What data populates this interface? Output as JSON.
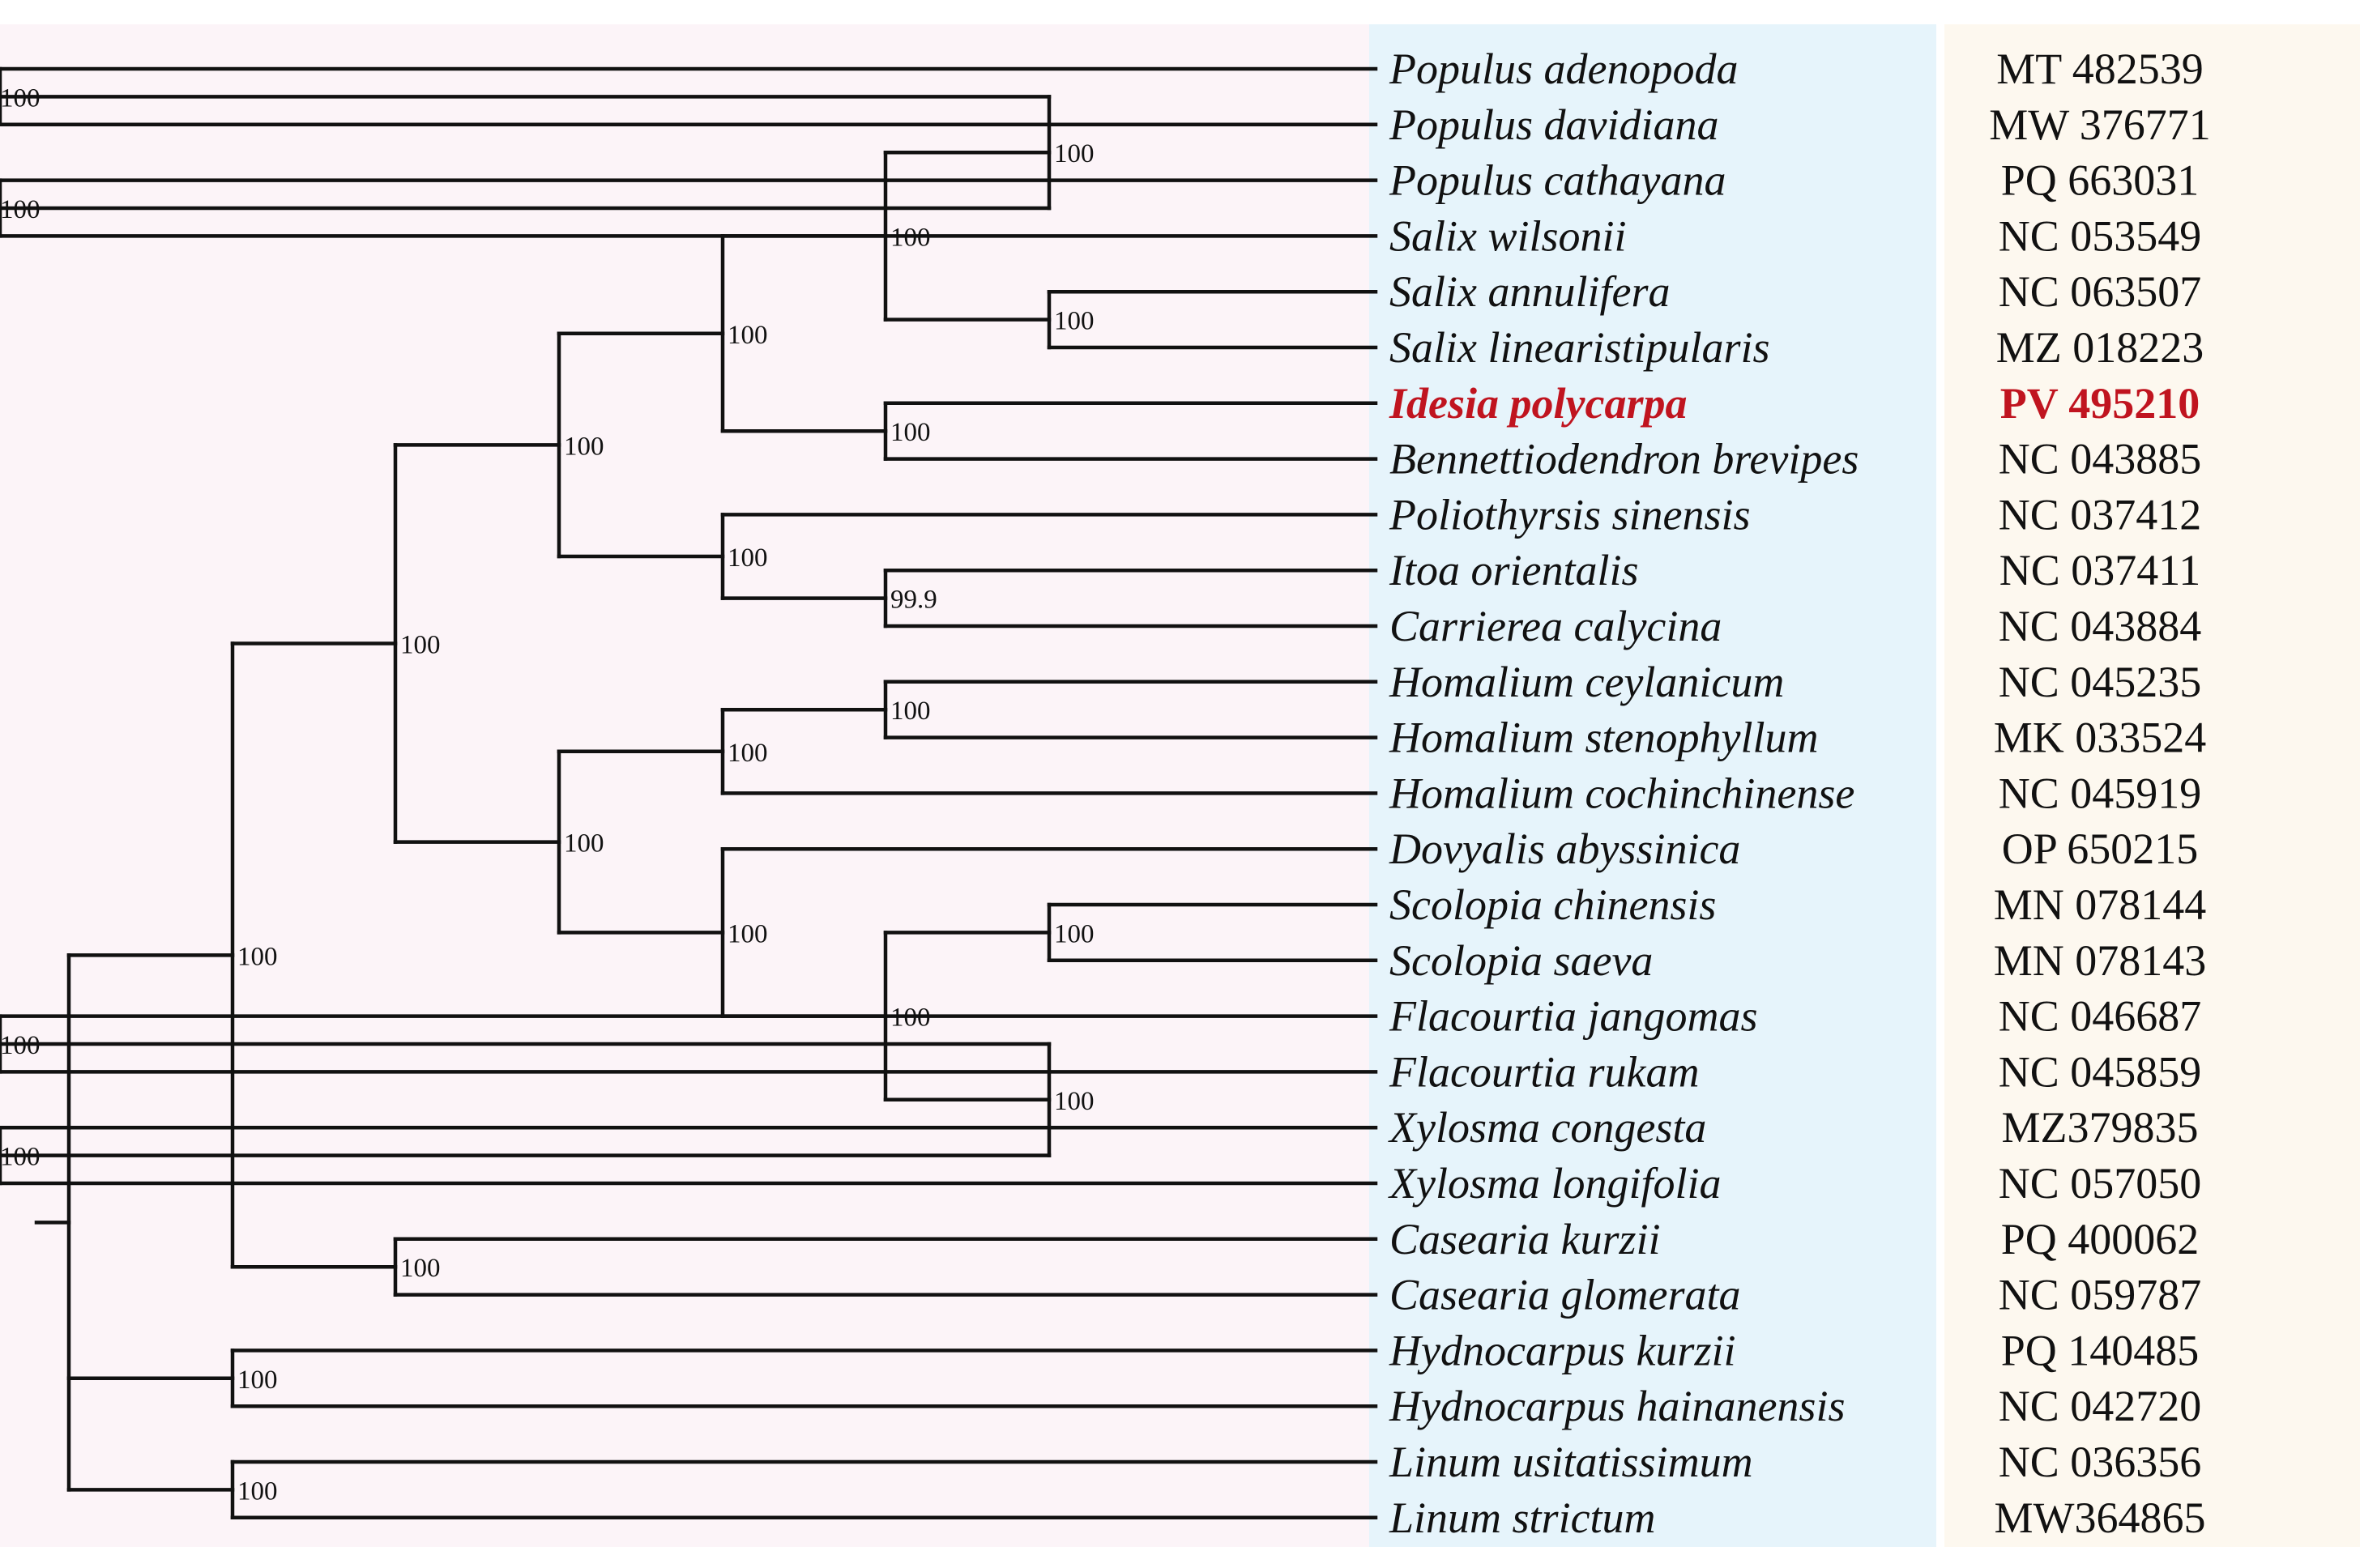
{
  "title": "",
  "colors": {
    "tree_panel": "#fcf4f8",
    "taxa_panel": "#e6f4fb",
    "accession_panel": "#fdf8ef",
    "branch": "#111111",
    "highlight": "#c0141f"
  },
  "highlight_taxon": "Idesia polycarpa",
  "taxa": [
    {
      "name": "Populus adenopoda",
      "accession": "MT 482539"
    },
    {
      "name": "Populus davidiana",
      "accession": "MW 376771"
    },
    {
      "name": "Populus cathayana",
      "accession": "PQ 663031"
    },
    {
      "name": "Salix wilsonii",
      "accession": "NC 053549"
    },
    {
      "name": "Salix annulifera",
      "accession": "NC 063507"
    },
    {
      "name": "Salix linearistipularis",
      "accession": "MZ 018223"
    },
    {
      "name": "Idesia polycarpa",
      "accession": "PV 495210"
    },
    {
      "name": "Bennettiodendron brevipes",
      "accession": "NC 043885"
    },
    {
      "name": "Poliothyrsis sinensis",
      "accession": "NC 037412"
    },
    {
      "name": "Itoa orientalis",
      "accession": "NC 037411"
    },
    {
      "name": "Carrierea calycina",
      "accession": "NC 043884"
    },
    {
      "name": "Homalium ceylanicum",
      "accession": "NC 045235"
    },
    {
      "name": "Homalium stenophyllum",
      "accession": "MK 033524"
    },
    {
      "name": "Homalium cochinchinense",
      "accession": "NC 045919"
    },
    {
      "name": "Dovyalis abyssinica",
      "accession": "OP 650215"
    },
    {
      "name": "Scolopia chinensis",
      "accession": "MN 078144"
    },
    {
      "name": "Scolopia saeva",
      "accession": "MN 078143"
    },
    {
      "name": "Flacourtia jangomas",
      "accession": "NC 046687"
    },
    {
      "name": "Flacourtia rukam",
      "accession": "NC 045859"
    },
    {
      "name": "Xylosma congesta",
      "accession": "MZ379835"
    },
    {
      "name": "Xylosma longifolia",
      "accession": "NC 057050"
    },
    {
      "name": "Casearia kurzii",
      "accession": "PQ 400062"
    },
    {
      "name": "Casearia glomerata",
      "accession": "NC 059787"
    },
    {
      "name": "Hydnocarpus kurzii",
      "accession": "PQ 140485"
    },
    {
      "name": "Hydnocarpus hainanensis",
      "accession": "NC 042720"
    },
    {
      "name": "Linum usitatissimum",
      "accession": "NC 036356"
    },
    {
      "name": "Linum strictum",
      "accession": "MW364865"
    }
  ],
  "tree": {
    "children": [
      {
        "support": "100",
        "children": [
          {
            "support": "100",
            "children": [
              {
                "support": "100",
                "children": [
                  {
                    "support": "100",
                    "children": [
                      {
                        "support": "100",
                        "children": [
                          {
                            "support": "100",
                            "children": [
                              {
                                "support": "100",
                                "children": [
                                  {
                                    "leaf": 0
                                  },
                                  {
                                    "leaf": 1
                                  }
                                ]
                              },
                              {
                                "support": "100",
                                "children": [
                                  {
                                    "leaf": 2
                                  },
                                  {
                                    "leaf": 3
                                  }
                                ]
                              }
                            ]
                          },
                          {
                            "support": "100",
                            "children": [
                              {
                                "leaf": 4
                              },
                              {
                                "leaf": 5
                              }
                            ]
                          }
                        ]
                      },
                      {
                        "support": "100",
                        "children": [
                          {
                            "leaf": 6
                          },
                          {
                            "leaf": 7
                          }
                        ]
                      }
                    ]
                  },
                  {
                    "support": "100",
                    "children": [
                      {
                        "leaf": 8
                      },
                      {
                        "support": "99.9",
                        "children": [
                          {
                            "leaf": 9
                          },
                          {
                            "leaf": 10
                          }
                        ]
                      }
                    ]
                  }
                ]
              },
              {
                "support": "100",
                "children": [
                  {
                    "support": "100",
                    "children": [
                      {
                        "support": "100",
                        "children": [
                          {
                            "leaf": 11
                          },
                          {
                            "leaf": 12
                          }
                        ]
                      },
                      {
                        "leaf": 13
                      }
                    ]
                  },
                  {
                    "support": "100",
                    "children": [
                      {
                        "leaf": 14
                      },
                      {
                        "support": "100",
                        "children": [
                          {
                            "support": "100",
                            "children": [
                              {
                                "leaf": 15
                              },
                              {
                                "leaf": 16
                              }
                            ]
                          },
                          {
                            "support": "100",
                            "children": [
                              {
                                "support": "100",
                                "children": [
                                  {
                                    "leaf": 17
                                  },
                                  {
                                    "leaf": 18
                                  }
                                ]
                              },
                              {
                                "support": "100",
                                "children": [
                                  {
                                    "leaf": 19
                                  },
                                  {
                                    "leaf": 20
                                  }
                                ]
                              }
                            ]
                          }
                        ]
                      }
                    ]
                  }
                ]
              }
            ]
          },
          {
            "support": "100",
            "children": [
              {
                "leaf": 21
              },
              {
                "leaf": 22
              }
            ]
          }
        ]
      },
      {
        "support": "100",
        "children": [
          {
            "leaf": 23
          },
          {
            "leaf": 24
          }
        ]
      },
      {
        "support": "100",
        "children": [
          {
            "leaf": 25
          },
          {
            "leaf": 26
          }
        ]
      }
    ]
  }
}
